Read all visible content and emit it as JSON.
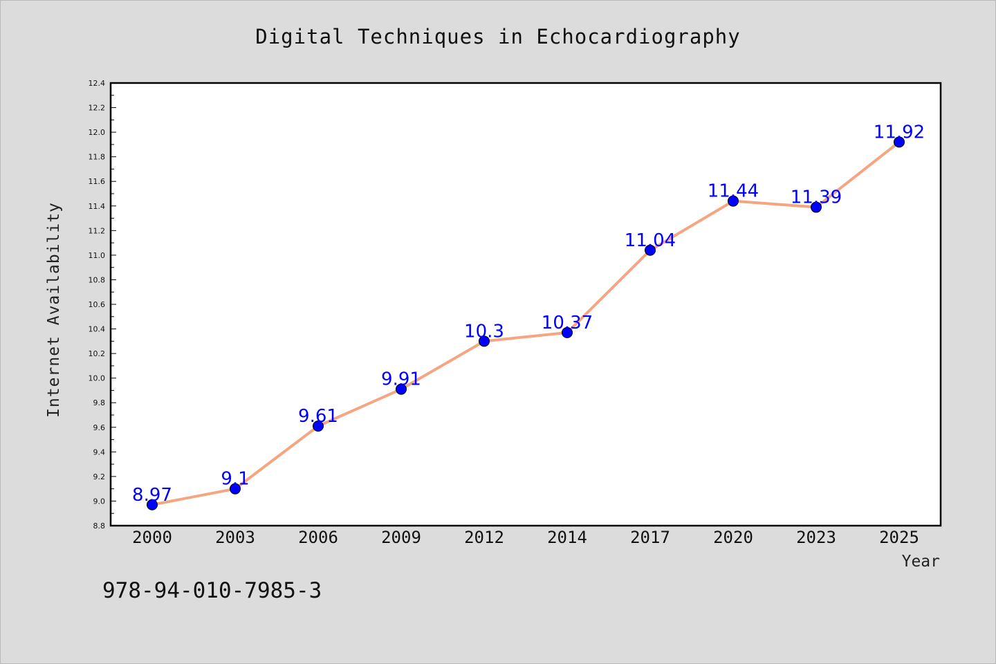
{
  "chart_data": {
    "type": "line",
    "title": "Digital Techniques in Echocardiography",
    "xlabel": "Year",
    "ylabel": "Internet Availability",
    "categories": [
      "2000",
      "2003",
      "2006",
      "2009",
      "2012",
      "2014",
      "2017",
      "2020",
      "2023",
      "2025"
    ],
    "values": [
      8.97,
      9.1,
      9.61,
      9.91,
      10.3,
      10.37,
      11.04,
      11.44,
      11.39,
      11.92
    ],
    "data_labels": [
      "8.97",
      "9.1",
      "9.61",
      "9.91",
      "10.3",
      "10.37",
      "11.04",
      "11.44",
      "11.39",
      "11.92"
    ],
    "ylim": [
      8.8,
      12.4
    ],
    "yticks": [
      "8.8",
      "9.0",
      "9.2",
      "9.4",
      "9.6",
      "9.8",
      "10.0",
      "10.2",
      "10.4",
      "10.6",
      "10.8",
      "11.0",
      "11.2",
      "11.4",
      "11.6",
      "11.8",
      "12.0",
      "12.2",
      "12.4"
    ],
    "grid": false,
    "legend": "none",
    "line_color": "#f4a582",
    "marker_color": "#0000ff",
    "label_color": "#0000ff",
    "background_color": "#dcdcdc",
    "plot_background": "#ffffff"
  },
  "footer": {
    "isbn": "978-94-010-7985-3"
  }
}
